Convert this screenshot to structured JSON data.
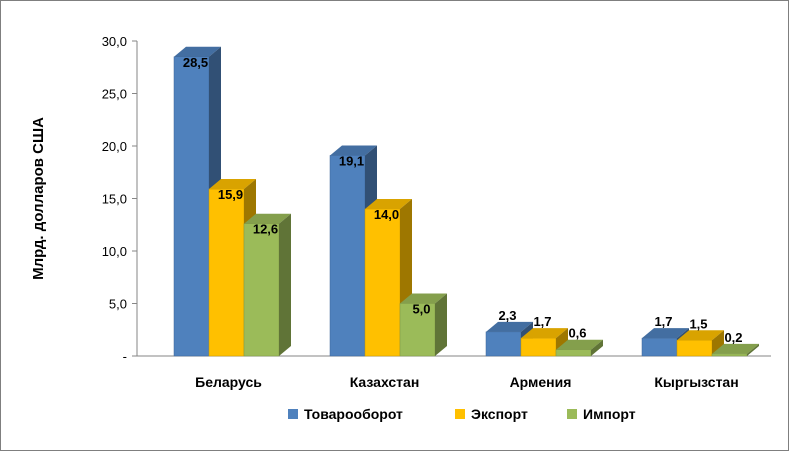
{
  "chart_data": {
    "type": "bar",
    "categories": [
      "Беларусь",
      "Казахстан",
      "Армения",
      "Кыргызстан"
    ],
    "series": [
      {
        "name": "Товарооборот",
        "values": [
          28.5,
          19.1,
          2.3,
          1.7
        ],
        "labels": [
          "28,5",
          "19,1",
          "2,3",
          "1,7"
        ],
        "color": "#4f81bd"
      },
      {
        "name": "Экспорт",
        "values": [
          15.9,
          14.0,
          1.7,
          1.5
        ],
        "labels": [
          "15,9",
          "14,0",
          "1,7",
          "1,5"
        ],
        "color": "#ffc000"
      },
      {
        "name": "Импорт",
        "values": [
          12.6,
          5.0,
          0.6,
          0.2
        ],
        "labels": [
          "12,6",
          "5,0",
          "0,6",
          "0,2"
        ],
        "color": "#9bbb59"
      }
    ],
    "ylabel": "Млрд. долларов США",
    "ylim": [
      0,
      30
    ],
    "yticks": [
      {
        "value": 30,
        "label": "30,0"
      },
      {
        "value": 25,
        "label": "25,0"
      },
      {
        "value": 20,
        "label": "20,0"
      },
      {
        "value": 15,
        "label": "15,0"
      },
      {
        "value": 10,
        "label": "10,0"
      },
      {
        "value": 5,
        "label": "5,0"
      },
      {
        "value": 0,
        "label": "-"
      }
    ],
    "grid": false,
    "legend": "bottom",
    "style": "3d-bar"
  }
}
